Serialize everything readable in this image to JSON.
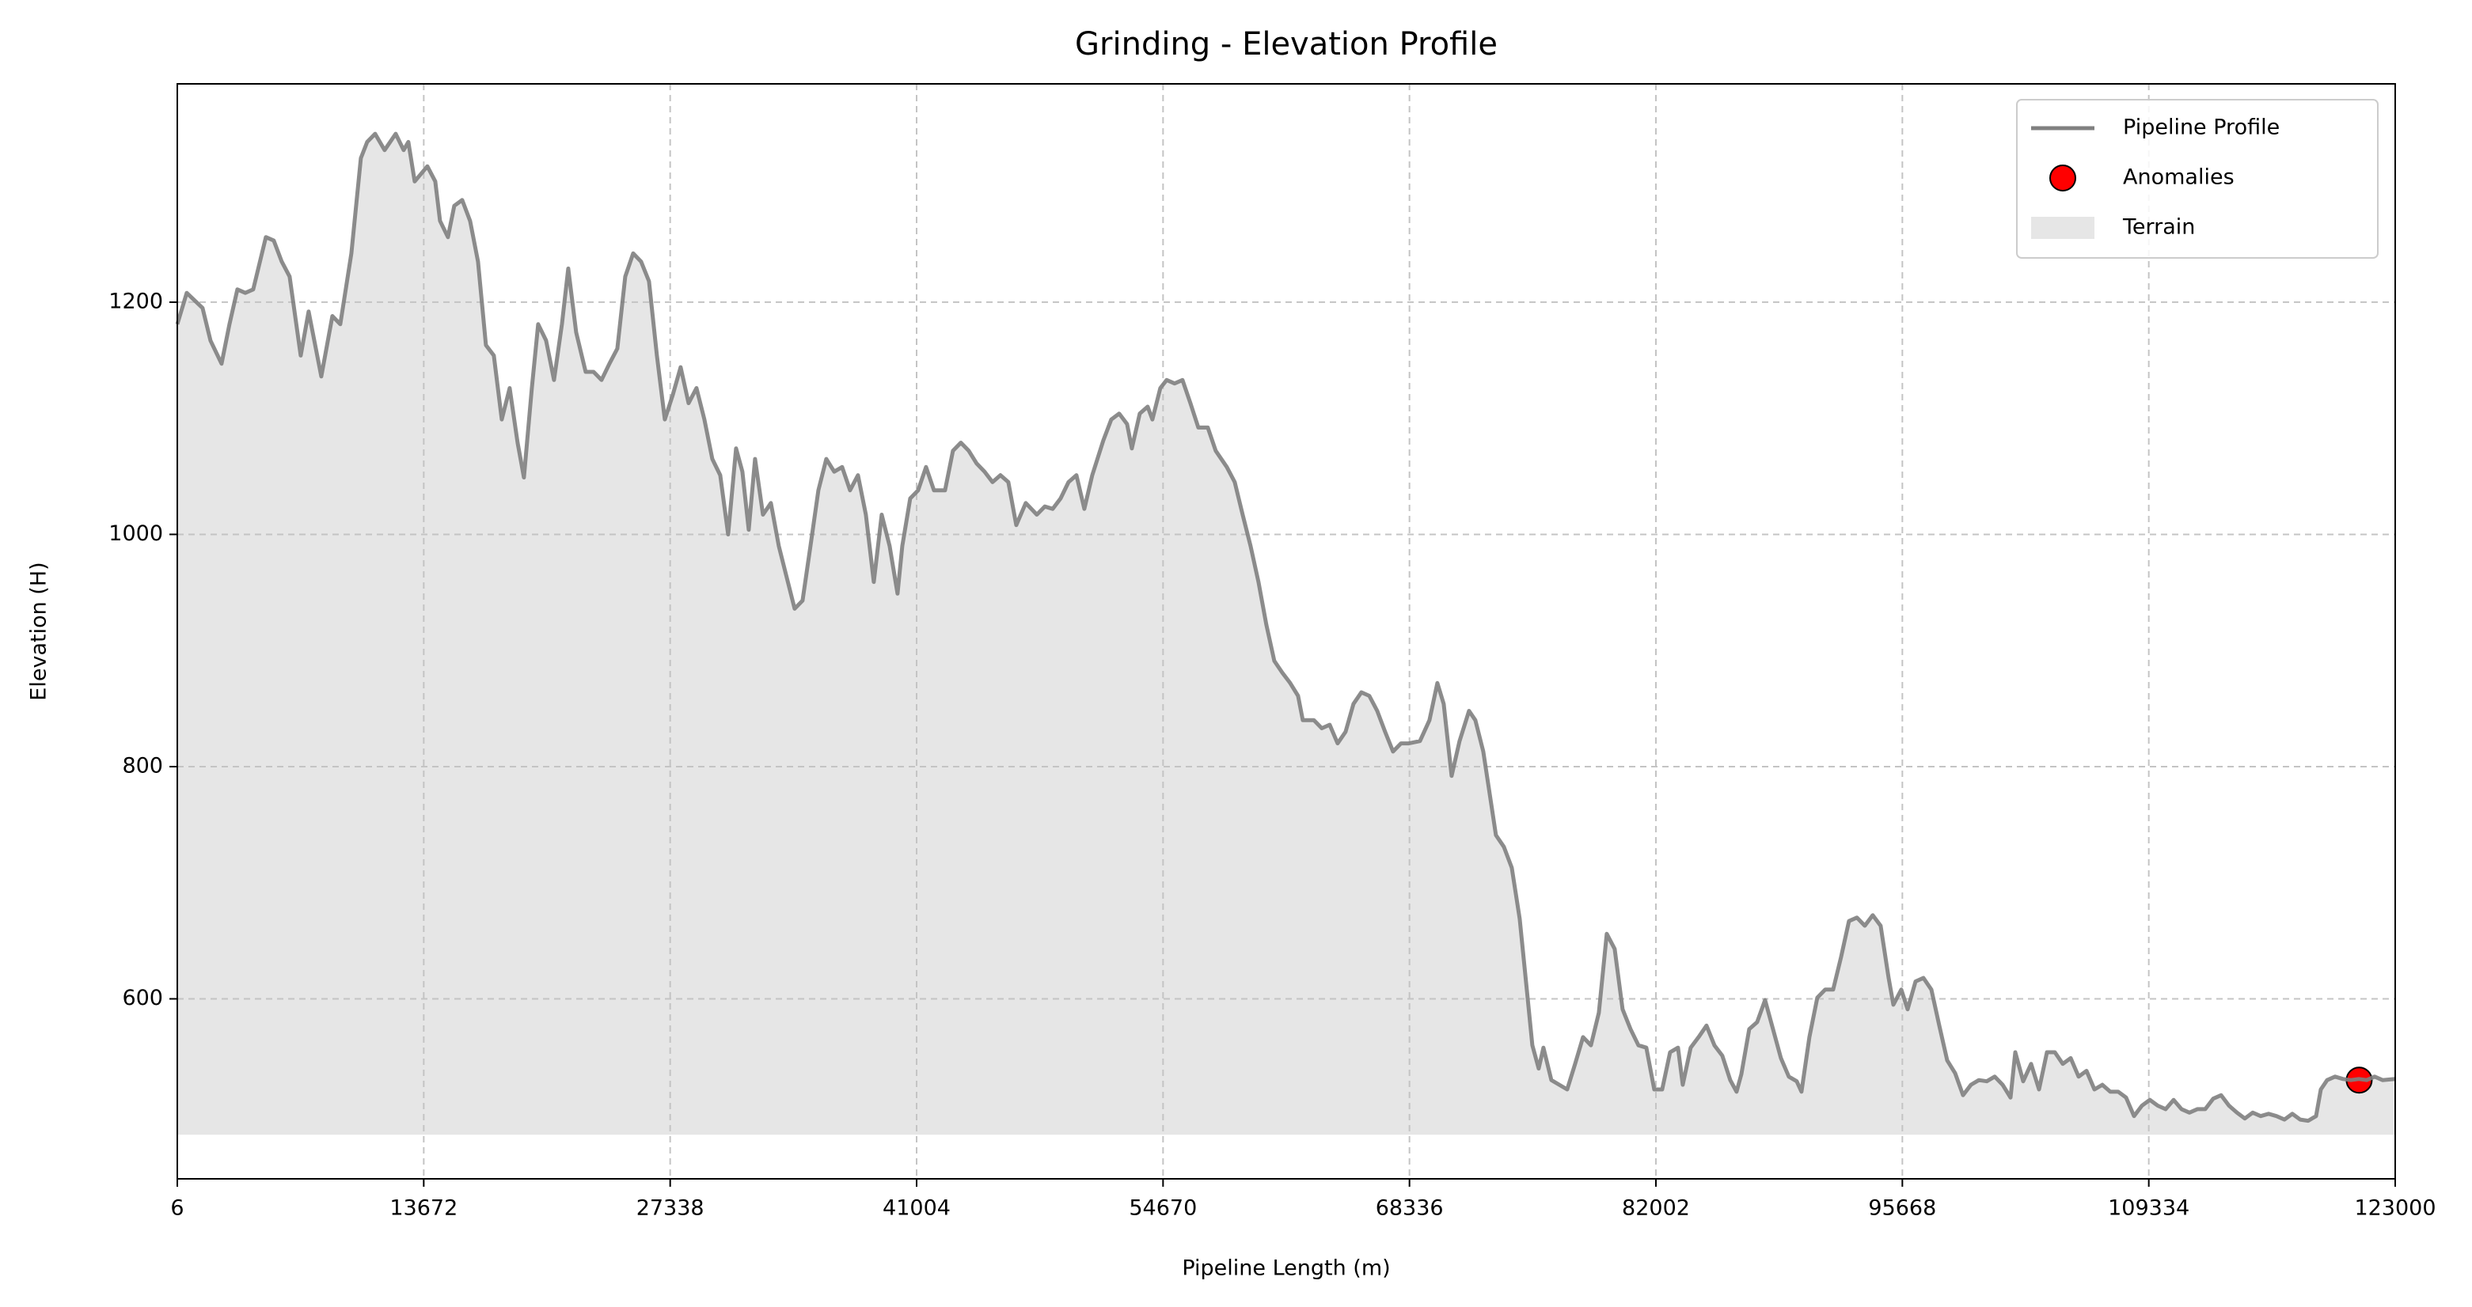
{
  "chart_data": {
    "type": "line",
    "title": "Grinding - Elevation Profile",
    "xlabel": "Pipeline Length (m)",
    "ylabel": "Elevation (H)",
    "xlim": [
      6,
      123000
    ],
    "ylim": [
      445,
      1388
    ],
    "xticks": [
      6,
      13672,
      27338,
      41004,
      54670,
      68336,
      82002,
      95668,
      109334,
      123000
    ],
    "yticks": [
      600,
      800,
      1000,
      1200
    ],
    "grid": true,
    "legend": "upper right",
    "x": [
      6,
      527,
      1405,
      1844,
      2458,
      2897,
      3336,
      3775,
      4214,
      4916,
      5355,
      5794,
      6233,
      6848,
      7287,
      7989,
      8603,
      9042,
      9657,
      10184,
      10535,
      10974,
      11500,
      12115,
      12554,
      12817,
      13169,
      13871,
      14310,
      14573,
      15012,
      15363,
      15802,
      16241,
      16680,
      17119,
      17558,
      17997,
      18436,
      18875,
      19226,
      19665,
      20016,
      20455,
      20894,
      21333,
      21684,
      22123,
      22650,
      23089,
      23528,
      23967,
      24406,
      24845,
      25284,
      25723,
      26162,
      26600,
      27039,
      27478,
      27917,
      28356,
      28795,
      29234,
      29673,
      30112,
      30551,
      30990,
      31341,
      31692,
      32043,
      32482,
      32921,
      33360,
      33799,
      34238,
      34677,
      35116,
      35555,
      35994,
      36433,
      36872,
      37311,
      37750,
      38189,
      38628,
      39067,
      39506,
      39944,
      40208,
      40647,
      41086,
      41525,
      41964,
      42579,
      43018,
      43457,
      43896,
      44335,
      44774,
      45213,
      45652,
      46091,
      46530,
      47056,
      47671,
      48110,
      48549,
      48988,
      49427,
      49866,
      50305,
      50744,
      51359,
      51798,
      52237,
      52676,
      52939,
      53378,
      53817,
      54080,
      54519,
      54870,
      55309,
      55748,
      56187,
      56626,
      57153,
      57592,
      58207,
      58646,
      59085,
      59523,
      59962,
      60401,
      60840,
      61279,
      61718,
      62157,
      62421,
      63035,
      63474,
      63913,
      64352,
      64791,
      65230,
      65669,
      66108,
      66547,
      66986,
      67425,
      67864,
      68303,
      68918,
      69444,
      69883,
      70235,
      70674,
      71113,
      71640,
      71991,
      72430,
      72693,
      73132,
      73571,
      74010,
      74449,
      74888,
      75151,
      75502,
      75766,
      76205,
      76644,
      77083,
      77521,
      77960,
      78399,
      78838,
      79277,
      79716,
      80155,
      80594,
      81033,
      81472,
      81911,
      82350,
      82789,
      83228,
      83491,
      83930,
      84369,
      84808,
      85247,
      85686,
      86125,
      86477,
      86740,
      87179,
      87618,
      88057,
      88496,
      88935,
      89374,
      89813,
      90076,
      90515,
      90954,
      91393,
      91832,
      92271,
      92710,
      93149,
      93588,
      94027,
      94466,
      94905,
      95169,
      95608,
      95959,
      96398,
      96837,
      97276,
      97715,
      98154,
      98593,
      99032,
      99471,
      99910,
      100349,
      100788,
      101227,
      101666,
      101929,
      102368,
      102807,
      103246,
      103685,
      104124,
      104563,
      105002,
      105441,
      105880,
      106319,
      106758,
      107197,
      107636,
      108075,
      108514,
      108953,
      109392,
      109831,
      110270,
      110709,
      111148,
      111587,
      112026,
      112465,
      112904,
      113343,
      113782,
      114221,
      114660,
      115099,
      115538,
      115977,
      116416,
      116855,
      117294,
      117733,
      118172,
      118611,
      118874,
      119225,
      119664,
      120103,
      120542,
      120981,
      121420,
      121859,
      122298,
      123000
    ],
    "series": [
      {
        "name": "Pipeline Profile",
        "color": "#808080",
        "values": [
          1181,
          1208,
          1195,
          1167,
          1147,
          1181,
          1211,
          1208,
          1211,
          1256,
          1253,
          1235,
          1222,
          1154,
          1192,
          1136,
          1188,
          1181,
          1242,
          1324,
          1338,
          1345,
          1331,
          1345,
          1331,
          1338,
          1304,
          1317,
          1304,
          1270,
          1256,
          1283,
          1288,
          1270,
          1235,
          1163,
          1154,
          1099,
          1126,
          1079,
          1049,
          1126,
          1181,
          1167,
          1133,
          1181,
          1229,
          1174,
          1140,
          1140,
          1133,
          1147,
          1160,
          1222,
          1242,
          1235,
          1218,
          1154,
          1099,
          1120,
          1144,
          1113,
          1126,
          1099,
          1065,
          1051,
          1000,
          1074,
          1054,
          1004,
          1065,
          1017,
          1027,
          990,
          963,
          936,
          943,
          990,
          1038,
          1065,
          1054,
          1058,
          1038,
          1051,
          1017,
          959,
          1017,
          990,
          949,
          990,
          1031,
          1038,
          1058,
          1038,
          1038,
          1072,
          1079,
          1072,
          1061,
          1054,
          1045,
          1051,
          1045,
          1008,
          1027,
          1017,
          1024,
          1022,
          1031,
          1045,
          1051,
          1022,
          1051,
          1081,
          1099,
          1104,
          1095,
          1074,
          1104,
          1110,
          1099,
          1126,
          1133,
          1130,
          1133,
          1113,
          1092,
          1092,
          1072,
          1058,
          1045,
          1017,
          990,
          959,
          922,
          891,
          881,
          872,
          861,
          840,
          840,
          833,
          836,
          820,
          830,
          854,
          864,
          861,
          848,
          830,
          813,
          820,
          820,
          822,
          840,
          872,
          854,
          792,
          822,
          848,
          840,
          813,
          786,
          741,
          731,
          713,
          669,
          601,
          560,
          540,
          558,
          530,
          526,
          522,
          544,
          567,
          560,
          588,
          656,
          643,
          591,
          574,
          560,
          558,
          522,
          522,
          554,
          558,
          526,
          558,
          567,
          577,
          560,
          551,
          530,
          520,
          535,
          574,
          580,
          599,
          574,
          549,
          533,
          529,
          520,
          567,
          601,
          608,
          608,
          636,
          667,
          670,
          663,
          672,
          663,
          618,
          595,
          608,
          591,
          615,
          618,
          608,
          577,
          547,
          536,
          517,
          526,
          530,
          529,
          533,
          526,
          515,
          554,
          529,
          544,
          522,
          554,
          554,
          544,
          549,
          533,
          538,
          522,
          526,
          520,
          520,
          515,
          499,
          508,
          513,
          508,
          505,
          513,
          505,
          502,
          505,
          505,
          514,
          517,
          508,
          502,
          497,
          502,
          499,
          501,
          499,
          496,
          501,
          496,
          495,
          499,
          522,
          530,
          533,
          531,
          530,
          531,
          530,
          533,
          530,
          531
        ]
      },
      {
        "name": "Anomalies",
        "type": "scatter",
        "color": "#ff0000",
        "x": [
          121000
        ],
        "values": [
          530
        ]
      },
      {
        "name": "Terrain",
        "type": "area",
        "color": "#e6e6e6",
        "base": 483
      }
    ]
  }
}
